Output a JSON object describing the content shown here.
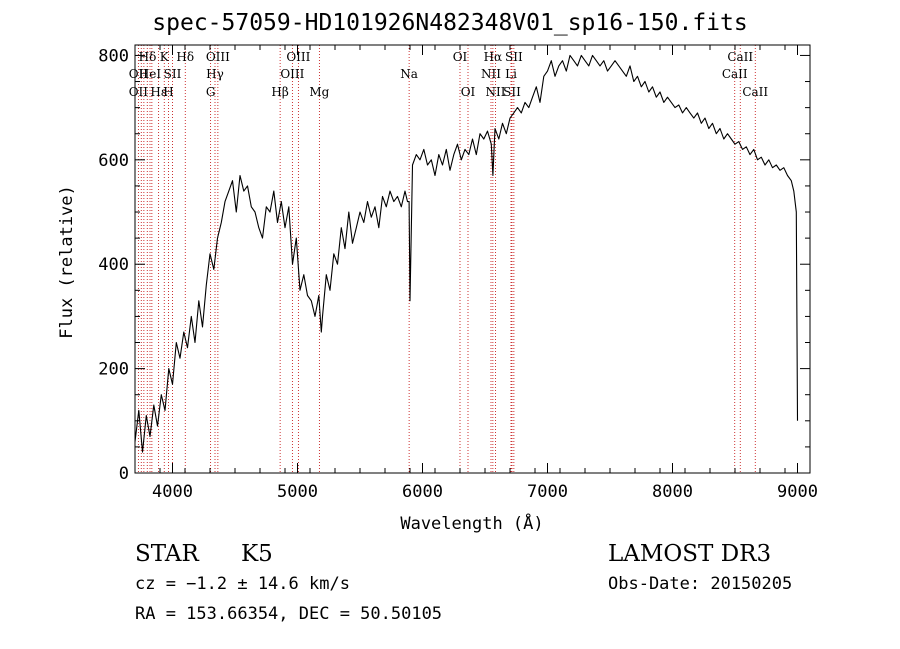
{
  "chart_data": {
    "type": "line",
    "title": "spec-57059-HD101926N482348V01_sp16-150.fits",
    "xlabel": "Wavelength (Å)",
    "ylabel": "Flux (relative)",
    "xlim": [
      3700,
      9100
    ],
    "ylim": [
      0,
      820
    ],
    "xticks": [
      4000,
      5000,
      6000,
      7000,
      8000,
      9000
    ],
    "yticks": [
      0,
      200,
      400,
      600,
      800
    ],
    "series": [
      {
        "name": "flux",
        "x": [
          3700,
          3730,
          3760,
          3790,
          3820,
          3850,
          3880,
          3910,
          3940,
          3970,
          4000,
          4030,
          4060,
          4090,
          4120,
          4150,
          4180,
          4210,
          4240,
          4270,
          4300,
          4330,
          4360,
          4390,
          4420,
          4450,
          4480,
          4510,
          4540,
          4570,
          4600,
          4630,
          4660,
          4690,
          4720,
          4750,
          4780,
          4810,
          4840,
          4870,
          4900,
          4930,
          4960,
          4990,
          5020,
          5050,
          5080,
          5110,
          5140,
          5170,
          5190,
          5200,
          5230,
          5260,
          5290,
          5320,
          5350,
          5380,
          5410,
          5440,
          5470,
          5500,
          5530,
          5560,
          5590,
          5620,
          5650,
          5680,
          5710,
          5740,
          5770,
          5800,
          5830,
          5860,
          5880,
          5893,
          5900,
          5920,
          5950,
          5980,
          6010,
          6040,
          6070,
          6100,
          6130,
          6160,
          6190,
          6220,
          6250,
          6280,
          6310,
          6340,
          6370,
          6400,
          6430,
          6460,
          6490,
          6520,
          6550,
          6563,
          6580,
          6610,
          6640,
          6670,
          6700,
          6730,
          6760,
          6790,
          6820,
          6850,
          6880,
          6910,
          6940,
          6970,
          7000,
          7030,
          7060,
          7090,
          7120,
          7150,
          7180,
          7210,
          7240,
          7270,
          7300,
          7330,
          7360,
          7390,
          7420,
          7450,
          7480,
          7510,
          7540,
          7570,
          7600,
          7630,
          7660,
          7690,
          7720,
          7750,
          7780,
          7810,
          7840,
          7870,
          7900,
          7930,
          7960,
          7990,
          8020,
          8050,
          8080,
          8110,
          8140,
          8170,
          8200,
          8230,
          8260,
          8290,
          8320,
          8350,
          8380,
          8410,
          8440,
          8470,
          8500,
          8530,
          8560,
          8590,
          8620,
          8650,
          8680,
          8710,
          8740,
          8770,
          8800,
          8830,
          8860,
          8890,
          8920,
          8950,
          8970,
          8990,
          9000
        ],
        "y": [
          60,
          120,
          40,
          110,
          70,
          130,
          90,
          150,
          120,
          200,
          170,
          250,
          220,
          270,
          240,
          300,
          250,
          330,
          280,
          360,
          420,
          390,
          450,
          480,
          520,
          540,
          560,
          500,
          570,
          540,
          550,
          510,
          500,
          470,
          450,
          510,
          500,
          540,
          480,
          520,
          470,
          510,
          400,
          450,
          350,
          380,
          340,
          330,
          300,
          340,
          270,
          300,
          380,
          350,
          420,
          400,
          470,
          430,
          500,
          440,
          470,
          500,
          480,
          520,
          490,
          510,
          470,
          530,
          510,
          540,
          520,
          530,
          510,
          540,
          520,
          520,
          330,
          590,
          610,
          600,
          620,
          590,
          600,
          570,
          610,
          590,
          620,
          580,
          610,
          630,
          600,
          620,
          610,
          640,
          610,
          650,
          640,
          655,
          630,
          570,
          660,
          640,
          670,
          650,
          680,
          690,
          700,
          690,
          710,
          700,
          720,
          740,
          710,
          760,
          770,
          790,
          760,
          780,
          790,
          770,
          800,
          790,
          780,
          800,
          790,
          780,
          800,
          790,
          780,
          790,
          770,
          780,
          790,
          780,
          770,
          760,
          780,
          750,
          760,
          740,
          750,
          730,
          740,
          720,
          730,
          710,
          720,
          710,
          700,
          705,
          690,
          700,
          690,
          680,
          690,
          670,
          680,
          660,
          670,
          650,
          660,
          640,
          650,
          640,
          630,
          635,
          620,
          625,
          610,
          620,
          600,
          605,
          590,
          600,
          585,
          590,
          580,
          585,
          570,
          560,
          540,
          500,
          100
        ]
      }
    ],
    "line_labels": [
      {
        "label": "Hδ",
        "x": 3800,
        "row": 1
      },
      {
        "label": "OII",
        "x": 3727,
        "row": 2
      },
      {
        "label": "OII",
        "x": 3727,
        "row": 3
      },
      {
        "label": "HeI",
        "x": 3820,
        "row": 2
      },
      {
        "label": "Hε",
        "x": 3890,
        "row": 3
      },
      {
        "label": "K",
        "x": 3934,
        "row": 1
      },
      {
        "label": "SII",
        "x": 4000,
        "row": 2
      },
      {
        "label": "H",
        "x": 3968,
        "row": 3
      },
      {
        "label": "Hδ",
        "x": 4102,
        "row": 1
      },
      {
        "label": "OIII",
        "x": 4363,
        "row": 1
      },
      {
        "label": "Hγ",
        "x": 4340,
        "row": 2
      },
      {
        "label": "G",
        "x": 4305,
        "row": 3
      },
      {
        "label": "Hβ",
        "x": 4861,
        "row": 3
      },
      {
        "label": "OIII",
        "x": 5007,
        "row": 1
      },
      {
        "label": "OIII",
        "x": 4959,
        "row": 2
      },
      {
        "label": "Mg",
        "x": 5175,
        "row": 3
      },
      {
        "label": "Na",
        "x": 5893,
        "row": 2
      },
      {
        "label": "OI",
        "x": 6300,
        "row": 1
      },
      {
        "label": "OI",
        "x": 6364,
        "row": 3
      },
      {
        "label": "Hα",
        "x": 6563,
        "row": 1
      },
      {
        "label": "SII",
        "x": 6731,
        "row": 1
      },
      {
        "label": "NII",
        "x": 6548,
        "row": 2
      },
      {
        "label": "Li",
        "x": 6708,
        "row": 2
      },
      {
        "label": "NII",
        "x": 6584,
        "row": 3
      },
      {
        "label": "SII",
        "x": 6716,
        "row": 3
      },
      {
        "label": "CaII",
        "x": 8542,
        "row": 1
      },
      {
        "label": "CaII",
        "x": 8498,
        "row": 2
      },
      {
        "label": "CaII",
        "x": 8662,
        "row": 3
      }
    ],
    "line_marks": [
      3727,
      3750,
      3771,
      3798,
      3820,
      3835,
      3889,
      3934,
      3968,
      4000,
      4102,
      4305,
      4340,
      4363,
      4861,
      4959,
      5007,
      5175,
      5893,
      6300,
      6364,
      6548,
      6563,
      6584,
      6708,
      6716,
      6731,
      8498,
      8542,
      8662
    ]
  },
  "info": {
    "object_class": "STAR",
    "subclass": "K5",
    "survey": "LAMOST DR3",
    "cz": "cz = −1.2 ± 14.6 km/s",
    "obs_date": "Obs-Date: 20150205",
    "coords": "RA = 153.66354, DEC =  50.50105"
  }
}
